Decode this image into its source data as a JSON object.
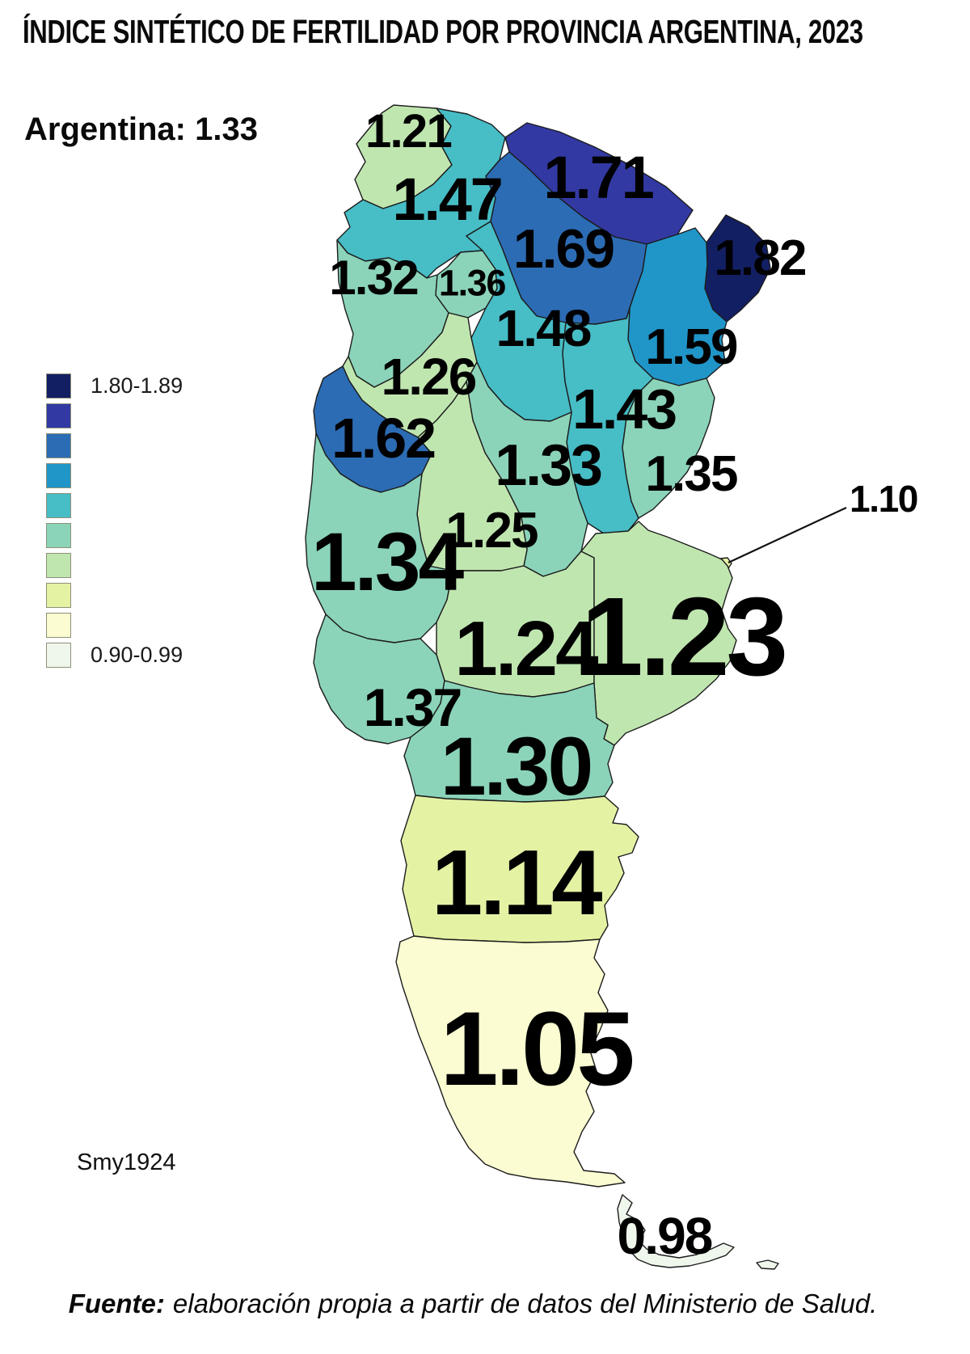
{
  "title": "ÍNDICE SINTÉTICO DE FERTILIDAD POR PROVINCIA ARGENTINA, 2023",
  "country_note": "Argentina: 1.33",
  "attribution": "Smy1924",
  "source": {
    "prefix": "Fuente:",
    "text": "elaboración propia a partir de datos del Ministerio de Salud."
  },
  "legend": {
    "top_label": "1.80-1.89",
    "bottom_label": "0.90-0.99",
    "colors": [
      "#131f63",
      "#3339a2",
      "#2c6cb4",
      "#2095c8",
      "#47bdc6",
      "#8bd4b9",
      "#c0e6b0",
      "#e4f2a4",
      "#fbfcd1",
      "#eff7ec"
    ]
  },
  "chart_data": {
    "type": "choropleth",
    "title": "ÍNDICE SINTÉTICO DE FERTILIDAD POR PROVINCIA ARGENTINA, 2023",
    "country_value": 1.33,
    "class_width": 0.1,
    "class_min": 0.9,
    "class_max": 1.89,
    "regions": [
      {
        "id": "jujuy",
        "value": 1.21
      },
      {
        "id": "salta",
        "value": 1.47
      },
      {
        "id": "formosa",
        "value": 1.71
      },
      {
        "id": "chaco",
        "value": 1.69
      },
      {
        "id": "misiones",
        "value": 1.82
      },
      {
        "id": "catamarca",
        "value": 1.32
      },
      {
        "id": "tucuman",
        "value": 1.36
      },
      {
        "id": "santiago_del_estero",
        "value": 1.48
      },
      {
        "id": "corrientes",
        "value": 1.59
      },
      {
        "id": "la_rioja",
        "value": 1.26
      },
      {
        "id": "santa_fe",
        "value": 1.43
      },
      {
        "id": "san_juan",
        "value": 1.62
      },
      {
        "id": "cordoba",
        "value": 1.33
      },
      {
        "id": "entre_rios",
        "value": 1.35
      },
      {
        "id": "caba",
        "value": 1.1
      },
      {
        "id": "san_luis",
        "value": 1.25
      },
      {
        "id": "mendoza",
        "value": 1.34
      },
      {
        "id": "la_pampa",
        "value": 1.24
      },
      {
        "id": "buenos_aires",
        "value": 1.23
      },
      {
        "id": "neuquen",
        "value": 1.37
      },
      {
        "id": "rio_negro",
        "value": 1.3
      },
      {
        "id": "chubut",
        "value": 1.14
      },
      {
        "id": "santa_cruz",
        "value": 1.05
      },
      {
        "id": "tierra_del_fuego",
        "value": 0.98
      }
    ]
  }
}
